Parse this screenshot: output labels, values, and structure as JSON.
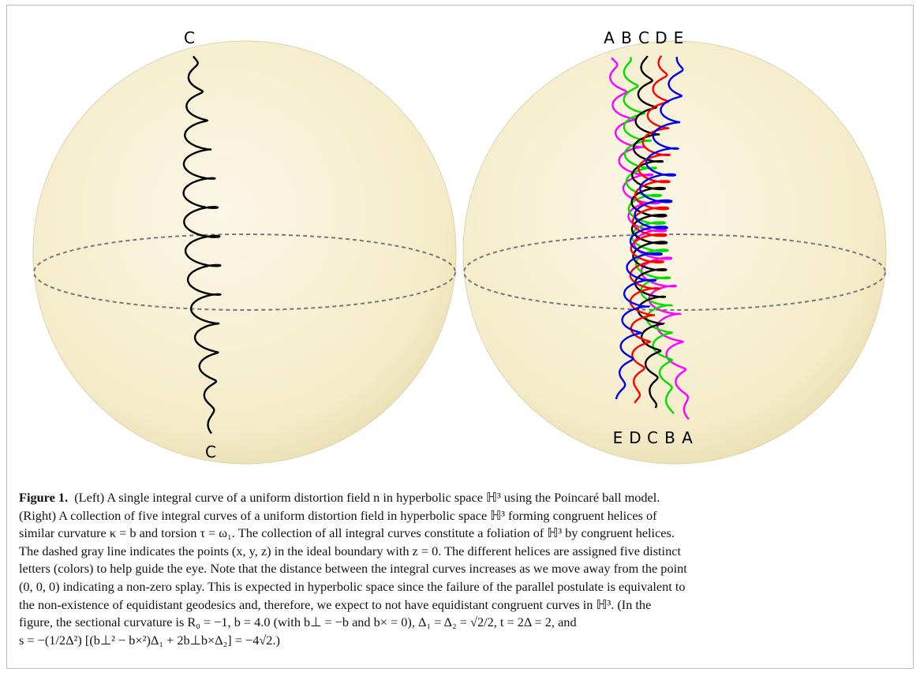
{
  "figure": {
    "left_panel": {
      "top_label": "C",
      "bottom_label": "C"
    },
    "right_panel": {
      "top_labels": [
        "A",
        "B",
        "C",
        "D",
        "E"
      ],
      "bottom_labels": [
        "E",
        "D",
        "C",
        "B",
        "A"
      ]
    },
    "caption": {
      "label": "Figure 1.",
      "lines": [
        "(Left) A single integral curve of a uniform distortion field n in hyperbolic space ℍ³ using the Poincaré ball model.",
        "(Right) A collection of five integral curves of a uniform distortion field in hyperbolic space ℍ³ forming congruent helices of",
        "similar curvature κ = b and torsion τ = ω₁. The collection of all integral curves constitute a foliation of ℍ³ by congruent helices.",
        "The dashed gray line indicates the points (x, y, z) in the ideal boundary with z = 0. The different helices are assigned five distinct",
        "letters (colors) to help guide the eye. Note that the distance between the integral curves increases as we move away from the point",
        "(0, 0, 0) indicating a non-zero splay. This is expected in hyperbolic space since the failure of the parallel postulate is equivalent to",
        "the non-existence of equidistant geodesics and, therefore, we expect to not have equidistant congruent curves in ℍ³. (In the",
        "figure, the sectional curvature is R₀ = −1, b = 4.0 (with b⊥ = −b and b× = 0), Δ₁ = Δ₂ = √2/2, t = 2Δ = 2, and",
        "s = −(1/2Δ²) [(b⊥² − b×²)Δ₁ + 2b⊥b×Δ₂] = −4√2.)"
      ]
    }
  }
}
